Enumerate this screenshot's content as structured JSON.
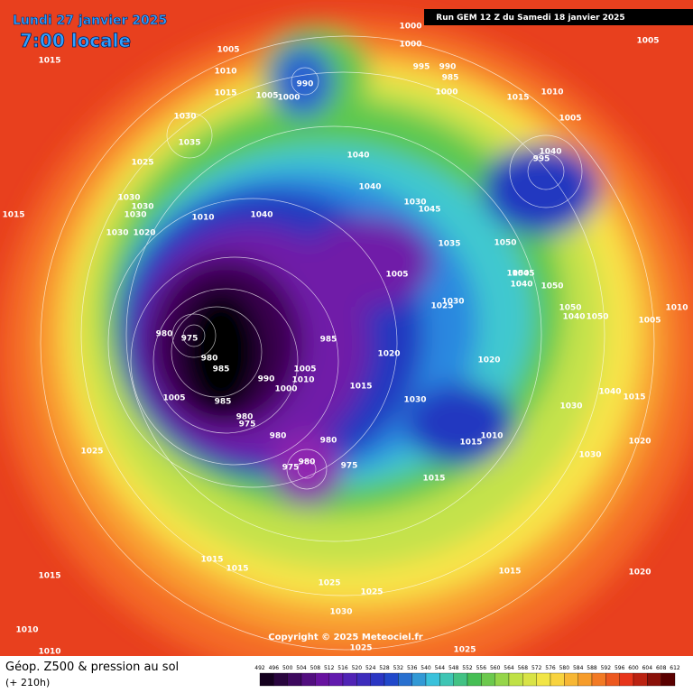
{
  "header": {
    "date": "Lundi 27 janvier 2025",
    "time": "7:00 locale",
    "run": "Run GEM 12 Z du Samedi 18 janvier 2025"
  },
  "footer": {
    "title": "Géop. Z500 & pression au sol",
    "lead": "(+ 210h)",
    "copyright": "Copyright © 2025 Meteociel.fr"
  },
  "legend": {
    "labels": [
      492,
      496,
      500,
      504,
      508,
      512,
      516,
      520,
      524,
      528,
      532,
      536,
      540,
      544,
      548,
      552,
      556,
      560,
      564,
      568,
      572,
      576,
      580,
      584,
      588,
      592,
      596,
      600,
      604,
      608,
      612
    ]
  },
  "pressure_labels": [
    "1015",
    "1005",
    "1010",
    "1015",
    "1030",
    "1035",
    "1025",
    "1030",
    "1030",
    "1030",
    "1030",
    "1020",
    "1015",
    "1010",
    "1040",
    "1005",
    "1000",
    "990",
    "1000",
    "1000",
    "995",
    "990",
    "985",
    "1000",
    "1005",
    "1015",
    "1010",
    "1005",
    "1040",
    "1040",
    "1030",
    "1045",
    "1040",
    "995",
    "1035",
    "1050",
    "1050",
    "1045",
    "1040",
    "1050",
    "1005",
    "1030",
    "1025",
    "1050",
    "1040",
    "1050",
    "1005",
    "1010",
    "980",
    "975",
    "985",
    "980",
    "985",
    "1020",
    "1020",
    "1005",
    "1010",
    "990",
    "1000",
    "1015",
    "1030",
    "1005",
    "985",
    "1040",
    "1015",
    "1030",
    "980",
    "975",
    "980",
    "1015",
    "1010",
    "980",
    "1025",
    "975",
    "980",
    "975",
    "1020",
    "1030",
    "1015",
    "1015",
    "1015",
    "1015",
    "1015",
    "1020",
    "1025",
    "1025",
    "1030",
    "1010",
    "1010",
    "1025",
    "1025"
  ]
}
